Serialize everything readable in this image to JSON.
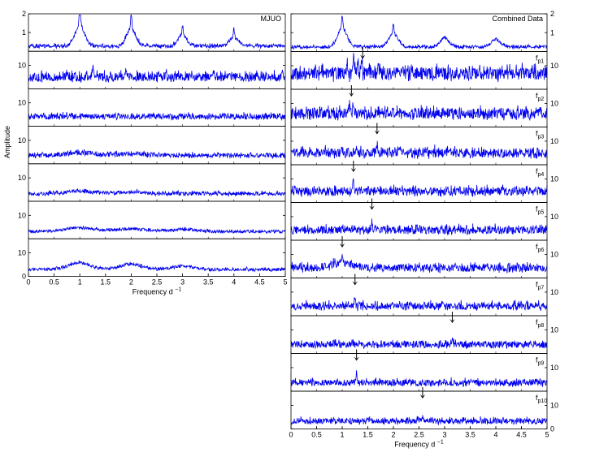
{
  "colors": {
    "trace": "#0000ee",
    "axis": "#000000",
    "arrow": "#000000",
    "background": "#ffffff"
  },
  "chart_data": [
    {
      "type": "line",
      "title": "MJUO",
      "ylabel": "Amplitude",
      "xlabel": "Frequency d",
      "xlabel_sup": "−1",
      "xlim": [
        0,
        5
      ],
      "x_ticks": [
        0,
        0.5,
        1,
        1.5,
        2,
        2.5,
        3,
        3.5,
        4,
        4.5,
        5
      ],
      "x_tick_labels": [
        "0",
        "0.5",
        "1",
        "1.5",
        "2",
        "2.5",
        "3",
        "3.5",
        "4",
        "4.5",
        "5"
      ],
      "y_tick_side": "left",
      "panels": [
        {
          "role": "spectral-window",
          "ylim": [
            0,
            2
          ],
          "y_ticks": [
            1,
            2
          ],
          "y_tick_labels": [
            "1",
            "2"
          ],
          "baseline": 0.25,
          "noise": 0.18,
          "bumps": [
            [
              1.0,
              1.1,
              0.13
            ],
            [
              2.0,
              0.9,
              0.13
            ],
            [
              3.0,
              0.6,
              0.12
            ],
            [
              4.0,
              0.45,
              0.12
            ]
          ],
          "spikes": [
            [
              1.0,
              1.65
            ],
            [
              2.0,
              1.35
            ],
            [
              3.0,
              0.9
            ],
            [
              4.0,
              0.75
            ]
          ]
        },
        {
          "ylim": [
            0,
            16
          ],
          "y_ticks": [
            10
          ],
          "y_tick_labels": [
            "10"
          ],
          "baseline": 4.5,
          "noise": 3.5,
          "bumps": [],
          "spikes": [
            [
              1.25,
              10
            ],
            [
              1.9,
              9
            ]
          ]
        },
        {
          "ylim": [
            0,
            16
          ],
          "y_ticks": [
            10
          ],
          "y_tick_labels": [
            "10"
          ],
          "baseline": 3.8,
          "noise": 2.2,
          "bumps": [],
          "spikes": []
        },
        {
          "ylim": [
            0,
            16
          ],
          "y_ticks": [
            10
          ],
          "y_tick_labels": [
            "10"
          ],
          "baseline": 3.3,
          "noise": 1.8,
          "bumps": [
            [
              1.0,
              1.2,
              0.35
            ],
            [
              2.0,
              0.8,
              0.35
            ]
          ],
          "spikes": []
        },
        {
          "ylim": [
            0,
            16
          ],
          "y_ticks": [
            10
          ],
          "y_tick_labels": [
            "10"
          ],
          "baseline": 3.0,
          "noise": 1.4,
          "bumps": [
            [
              1.0,
              1.0,
              0.4
            ],
            [
              2.0,
              0.7,
              0.4
            ]
          ],
          "spikes": []
        },
        {
          "ylim": [
            0,
            16
          ],
          "y_ticks": [
            10
          ],
          "y_tick_labels": [
            "10"
          ],
          "baseline": 2.9,
          "noise": 1.2,
          "bumps": [
            [
              1.0,
              1.6,
              0.4
            ],
            [
              2.0,
              1.2,
              0.4
            ],
            [
              3.0,
              0.8,
              0.4
            ]
          ],
          "spikes": []
        },
        {
          "ylim": [
            0,
            16
          ],
          "y_ticks": [
            0,
            10
          ],
          "y_tick_labels": [
            "0",
            "10"
          ],
          "baseline": 2.7,
          "noise": 1.2,
          "bumps": [
            [
              1.0,
              2.8,
              0.3
            ],
            [
              2.0,
              2.3,
              0.3
            ],
            [
              3.0,
              1.4,
              0.3
            ]
          ],
          "spikes": []
        }
      ]
    },
    {
      "type": "line",
      "title": "Combined Data",
      "xlabel": "Frequency d",
      "xlabel_sup": "−1",
      "xlim": [
        0,
        5
      ],
      "x_ticks": [
        0,
        0.5,
        1,
        1.5,
        2,
        2.5,
        3,
        3.5,
        4,
        4.5,
        5
      ],
      "x_tick_labels": [
        "0",
        "0.5",
        "1",
        "1.5",
        "2",
        "2.5",
        "3",
        "3.5",
        "4",
        "4.5",
        "5"
      ],
      "y_tick_side": "right",
      "panels": [
        {
          "role": "spectral-window",
          "label": "",
          "ylim": [
            0,
            2
          ],
          "y_ticks": [
            1,
            2
          ],
          "y_tick_labels": [
            "1",
            "2"
          ],
          "baseline": 0.22,
          "noise": 0.15,
          "bumps": [
            [
              1.0,
              1.0,
              0.13
            ],
            [
              2.0,
              0.7,
              0.13
            ],
            [
              3.0,
              0.5,
              0.12
            ],
            [
              4.0,
              0.4,
              0.12
            ]
          ],
          "spikes": [
            [
              1.0,
              1.1
            ],
            [
              2.0,
              0.9
            ]
          ]
        },
        {
          "label": "f",
          "label_sub": "p1",
          "arrow_at": 1.4,
          "ylim": [
            0,
            16
          ],
          "y_ticks": [
            10
          ],
          "y_tick_labels": [
            "10"
          ],
          "baseline": 6.0,
          "noise": 5.0,
          "bumps": [],
          "spikes": [
            [
              1.22,
              14
            ],
            [
              1.3,
              13
            ],
            [
              1.38,
              12.5
            ],
            [
              1.1,
              11
            ]
          ]
        },
        {
          "label": "f",
          "label_sub": "p2",
          "arrow_at": 1.18,
          "ylim": [
            0,
            16
          ],
          "y_ticks": [
            10
          ],
          "y_tick_labels": [
            "10"
          ],
          "baseline": 5.0,
          "noise": 4.2,
          "bumps": [],
          "spikes": [
            [
              1.15,
              12
            ],
            [
              1.22,
              11
            ]
          ]
        },
        {
          "label": "f",
          "label_sub": "p3",
          "arrow_at": 1.68,
          "ylim": [
            0,
            16
          ],
          "y_ticks": [
            10
          ],
          "y_tick_labels": [
            "10"
          ],
          "baseline": 4.5,
          "noise": 3.6,
          "bumps": [],
          "spikes": [
            [
              1.68,
              9.5
            ]
          ]
        },
        {
          "label": "f",
          "label_sub": "p4",
          "arrow_at": 1.22,
          "ylim": [
            0,
            16
          ],
          "y_ticks": [
            10
          ],
          "y_tick_labels": [
            "10"
          ],
          "baseline": 4.2,
          "noise": 3.3,
          "bumps": [],
          "spikes": [
            [
              1.22,
              9.5
            ]
          ]
        },
        {
          "label": "f",
          "label_sub": "p5",
          "arrow_at": 1.58,
          "ylim": [
            0,
            16
          ],
          "y_ticks": [
            10
          ],
          "y_tick_labels": [
            "10"
          ],
          "baseline": 3.8,
          "noise": 3.0,
          "bumps": [],
          "spikes": [
            [
              1.58,
              8
            ]
          ]
        },
        {
          "label": "f",
          "label_sub": "p6",
          "arrow_at": 1.0,
          "ylim": [
            0,
            16
          ],
          "y_ticks": [
            10
          ],
          "y_tick_labels": [
            "10"
          ],
          "baseline": 3.8,
          "noise": 3.0,
          "bumps": [
            [
              1.0,
              2.0,
              0.3
            ]
          ],
          "spikes": [
            [
              1.0,
              8.5
            ]
          ]
        },
        {
          "label": "f",
          "label_sub": "p7",
          "arrow_at": 1.25,
          "ylim": [
            0,
            16
          ],
          "y_ticks": [
            10
          ],
          "y_tick_labels": [
            "10"
          ],
          "baseline": 3.6,
          "noise": 2.8,
          "bumps": [],
          "spikes": [
            [
              1.25,
              8
            ]
          ]
        },
        {
          "label": "f",
          "label_sub": "p8",
          "arrow_at": 3.15,
          "ylim": [
            0,
            16
          ],
          "y_ticks": [
            10
          ],
          "y_tick_labels": [
            "10"
          ],
          "baseline": 3.4,
          "noise": 2.6,
          "bumps": [],
          "spikes": [
            [
              3.15,
              6.5
            ]
          ]
        },
        {
          "label": "f",
          "label_sub": "p9",
          "arrow_at": 1.28,
          "ylim": [
            0,
            16
          ],
          "y_ticks": [
            10
          ],
          "y_tick_labels": [
            "10"
          ],
          "baseline": 3.2,
          "noise": 2.4,
          "bumps": [],
          "spikes": [
            [
              1.28,
              7
            ]
          ]
        },
        {
          "label": "f",
          "label_sub": "p10",
          "arrow_at": 2.57,
          "ylim": [
            0,
            16
          ],
          "y_ticks": [
            0,
            10
          ],
          "y_tick_labels": [
            "0",
            "10"
          ],
          "baseline": 3.0,
          "noise": 2.2,
          "bumps": [],
          "spikes": [
            [
              2.57,
              6
            ]
          ]
        }
      ]
    }
  ]
}
